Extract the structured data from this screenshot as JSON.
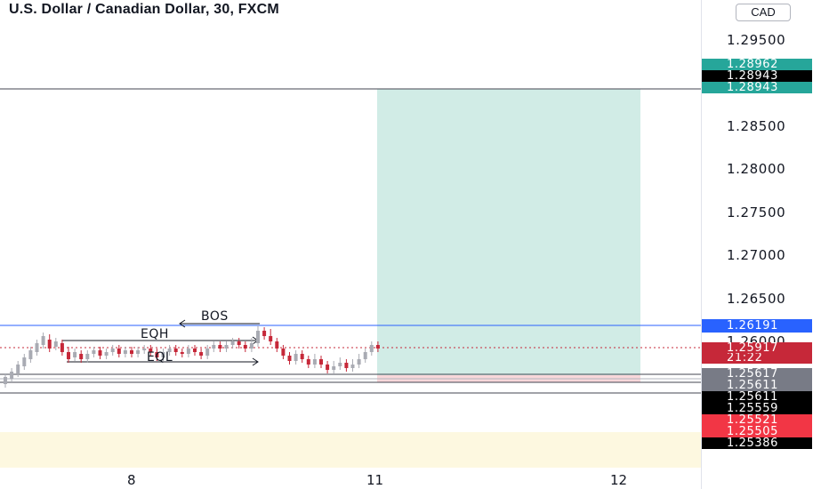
{
  "header": {
    "title": "U.S. Dollar / Canadian Dollar, 30, FXCM"
  },
  "price_scale": {
    "currency": "CAD",
    "levels": [
      "1.29500",
      "1.28500",
      "1.28000",
      "1.27500",
      "1.27000",
      "1.26500",
      "1.26000"
    ]
  },
  "price_tags": [
    {
      "text": "1.28962",
      "color": "#26a69a"
    },
    {
      "text": "1.28943",
      "color": "#000000"
    },
    {
      "text": "1.28943",
      "color": "#26a69a"
    },
    {
      "text": "1.26191",
      "color": "#2962ff"
    },
    {
      "text": "1.25917",
      "color": "#c62839"
    },
    {
      "text": "21:22",
      "color": "#c62839"
    },
    {
      "text": "1.25617",
      "color": "#787b86"
    },
    {
      "text": "1.25611",
      "color": "#787b86"
    },
    {
      "text": "1.25611",
      "color": "#000000"
    },
    {
      "text": "1.25559",
      "color": "#000000"
    },
    {
      "text": "1.25521",
      "color": "#f23645"
    },
    {
      "text": "1.25505",
      "color": "#f23645"
    },
    {
      "text": "1.25386",
      "color": "#000000"
    }
  ],
  "time_axis": {
    "labels": [
      "8",
      "11",
      "12"
    ]
  },
  "annotations": {
    "bos": "BOS",
    "eqh": "EQH",
    "eql": "EQL"
  },
  "colors": {
    "up": "#a9abb3",
    "down": "#c62839",
    "target_zone": "#d1ece6",
    "stop_zone": "#f8d7da",
    "bos_line": "#2962ff",
    "highlight_zone": "#fdf8e0"
  },
  "chart_data": {
    "type": "candlestick",
    "symbol": "USDCAD",
    "timeframe": "30",
    "y_ticks": [
      1.295,
      1.285,
      1.28,
      1.275,
      1.27,
      1.265,
      1.26
    ],
    "x_ticks": [
      "8",
      "11",
      "12"
    ],
    "last_price": 1.25917,
    "bos_level": 1.26191,
    "position": {
      "target": 1.28943,
      "entry": 1.25617,
      "stop": 1.25559
    }
  }
}
